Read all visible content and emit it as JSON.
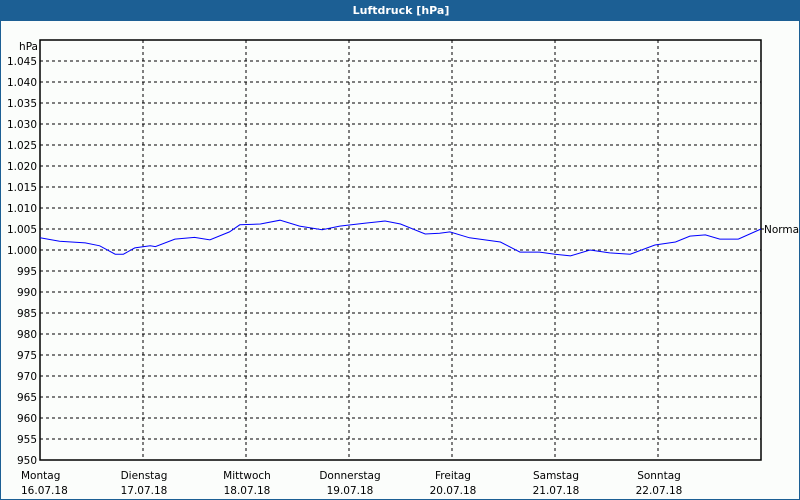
{
  "chart_data": {
    "type": "line",
    "title": "Luftdruck [hPa]",
    "ylabel": "hPa",
    "ylim": [
      950,
      1047
    ],
    "yticks": [
      950,
      955,
      960,
      965,
      970,
      975,
      980,
      985,
      990,
      995,
      1000,
      1005,
      1010,
      1015,
      1020,
      1025,
      1030,
      1035,
      1040,
      1045
    ],
    "ytick_labels": [
      "950",
      "955",
      "960",
      "965",
      "970",
      "975",
      "980",
      "985",
      "990",
      "995",
      "1.000",
      "1.005",
      "1.010",
      "1.015",
      "1.020",
      "1.025",
      "1.030",
      "1.035",
      "1.040",
      "1.045"
    ],
    "xlim": [
      0,
      7
    ],
    "xticks": [
      {
        "day": "Montag",
        "date": "16.07.18"
      },
      {
        "day": "Dienstag",
        "date": "17.07.18"
      },
      {
        "day": "Mittwoch",
        "date": "18.07.18"
      },
      {
        "day": "Donnerstag",
        "date": "19.07.18"
      },
      {
        "day": "Freitag",
        "date": "20.07.18"
      },
      {
        "day": "Samstag",
        "date": "21.07.18"
      },
      {
        "day": "Sonntag",
        "date": "22.07.18"
      }
    ],
    "grid": true,
    "reference": {
      "label": "Normal",
      "value": 1005
    },
    "series": [
      {
        "color": "#0000ff",
        "x": [
          0,
          0.19,
          0.44,
          0.58,
          0.73,
          0.81,
          0.92,
          1.07,
          1.12,
          1.31,
          1.5,
          1.65,
          1.84,
          1.94,
          2.14,
          2.33,
          2.52,
          2.74,
          2.91,
          3.16,
          3.35,
          3.5,
          3.74,
          3.88,
          3.98,
          4.17,
          4.47,
          4.66,
          4.85,
          5,
          5.15,
          5.34,
          5.53,
          5.73,
          5.97,
          6.17,
          6.31,
          6.46,
          6.6,
          6.78,
          7
        ],
        "y": [
          1002.9,
          1002.1,
          1001.7,
          1001,
          999,
          999,
          1000.5,
          1001,
          1000.8,
          1002.6,
          1003,
          1002.4,
          1004.3,
          1006,
          1006.2,
          1007.1,
          1005.7,
          1004.8,
          1005.7,
          1006.4,
          1006.9,
          1006.2,
          1003.8,
          1004,
          1004.3,
          1002.9,
          1001.9,
          999.5,
          999.5,
          999,
          998.6,
          1000,
          999.3,
          999,
          1001.2,
          1001.9,
          1003.3,
          1003.6,
          1002.6,
          1002.6,
          1005
        ]
      }
    ]
  }
}
